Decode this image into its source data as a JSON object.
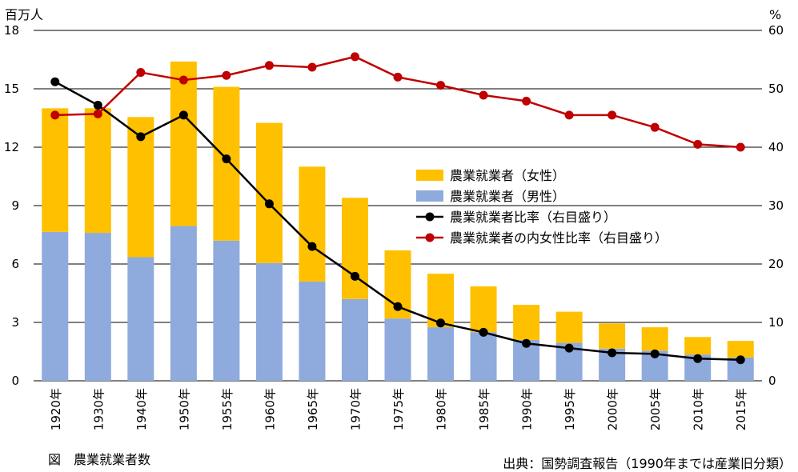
{
  "caption": {
    "title": "図　農業就業者数",
    "source": "出典：国勢調査報告（1990年までは産業旧分類）"
  },
  "colors": {
    "female": "#FFC000",
    "male": "#8FAADC",
    "ratio_line": "#000000",
    "female_ratio_line": "#C00000",
    "grid": "#000000"
  },
  "chart_data": {
    "type": "bar",
    "stacked": true,
    "categories": [
      "1920年",
      "1930年",
      "1940年",
      "1950年",
      "1955年",
      "1960年",
      "1965年",
      "1970年",
      "1975年",
      "1980年",
      "1985年",
      "1990年",
      "1995年",
      "2000年",
      "2005年",
      "2010年",
      "2015年"
    ],
    "left_axis": {
      "unit": "百万人",
      "ylim": [
        0,
        18
      ],
      "ticks": [
        0,
        3,
        6,
        9,
        12,
        15,
        18
      ]
    },
    "right_axis": {
      "unit": "%",
      "ylim": [
        0,
        60
      ],
      "ticks": [
        0,
        10,
        20,
        30,
        40,
        50,
        60
      ]
    },
    "grid": true,
    "legend_position": "center-right",
    "series": [
      {
        "name": "農業就業者（男性）",
        "type": "bar",
        "axis": "left",
        "values": [
          7.65,
          7.6,
          6.35,
          7.95,
          7.2,
          6.05,
          5.1,
          4.2,
          3.2,
          2.75,
          2.5,
          2.1,
          1.95,
          1.65,
          1.55,
          1.35,
          1.2
        ]
      },
      {
        "name": "農業就業者（女性）",
        "type": "bar",
        "axis": "left",
        "values": [
          6.35,
          6.4,
          7.2,
          8.45,
          7.9,
          7.2,
          5.9,
          5.2,
          3.5,
          2.75,
          2.35,
          1.8,
          1.6,
          1.3,
          1.2,
          0.9,
          0.85
        ]
      },
      {
        "name": "農業就業者比率（右目盛り）",
        "type": "line",
        "axis": "right",
        "values": [
          51.2,
          47.2,
          41.8,
          45.5,
          38.0,
          30.3,
          23.0,
          17.9,
          12.7,
          9.9,
          8.3,
          6.4,
          5.6,
          4.8,
          4.6,
          3.8,
          3.6
        ]
      },
      {
        "name": "農業就業者の内女性比率（右目盛り）",
        "type": "line",
        "axis": "right",
        "values": [
          45.5,
          45.7,
          52.8,
          51.5,
          52.3,
          54.0,
          53.7,
          55.5,
          52.0,
          50.6,
          48.9,
          47.9,
          45.5,
          45.5,
          43.4,
          40.5,
          40.0
        ]
      }
    ]
  }
}
